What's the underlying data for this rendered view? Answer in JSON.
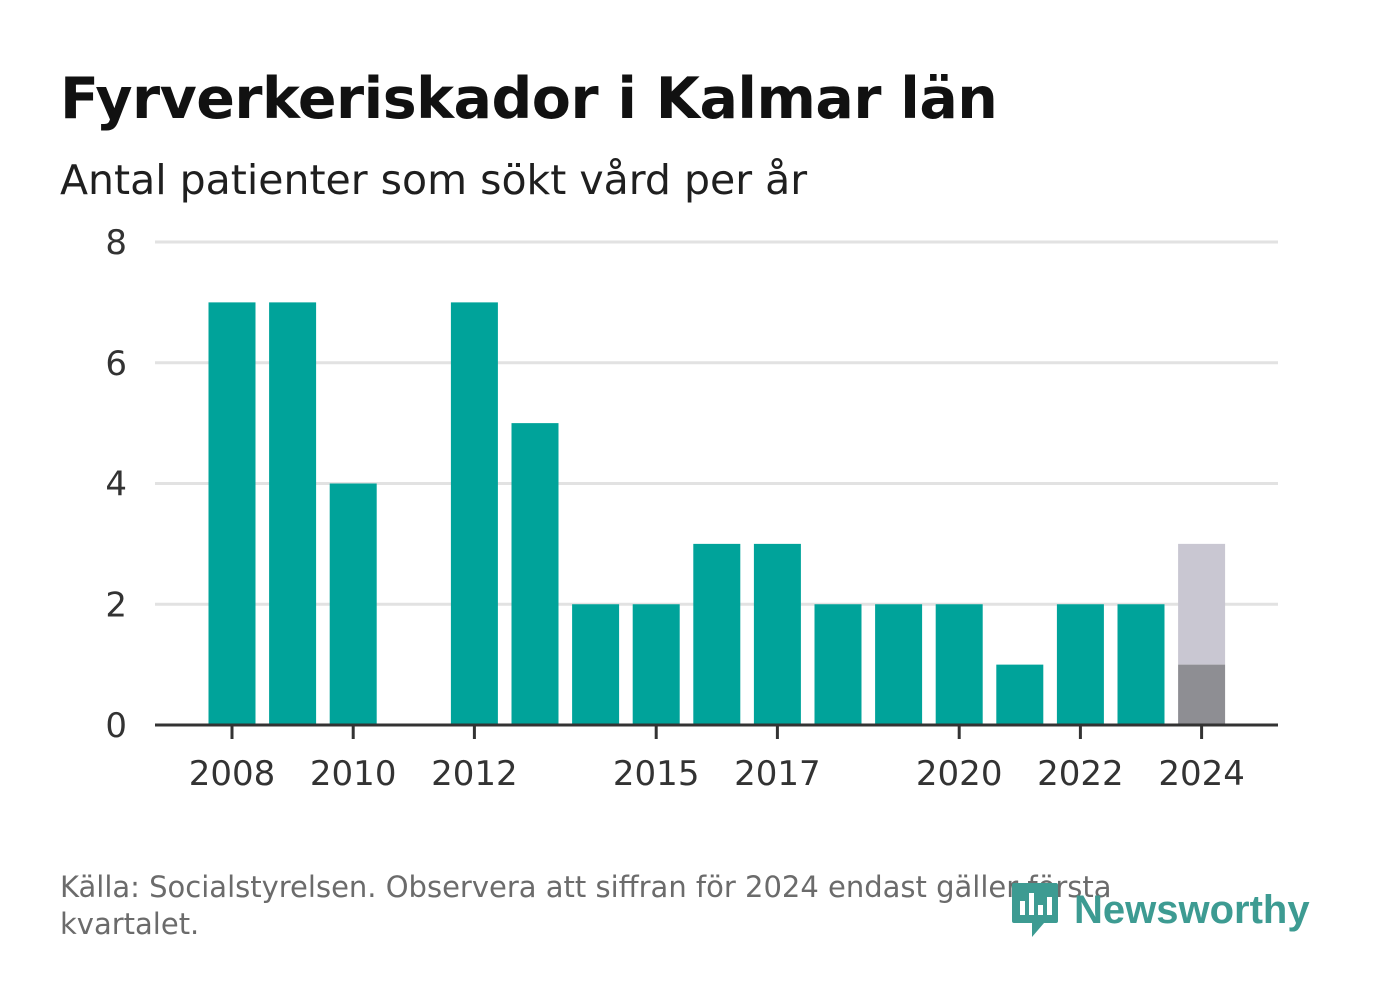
{
  "header": {
    "title": "Fyrverkeriskador i Kalmar län",
    "subtitle": "Antal patienter som sökt vård per år"
  },
  "footer": {
    "source": "Källa: Socialstyrelsen. Observera att siffran för 2024 endast gäller första kvartalet.",
    "brand": "Newsworthy"
  },
  "colors": {
    "bar": "#00a39a",
    "partial_actual": "#8e8e93",
    "partial_remaining": "#c9c7d2",
    "grid": "#e2e2e2",
    "axis": "#333333"
  },
  "chart_data": {
    "type": "bar",
    "title": "Fyrverkeriskador i Kalmar län",
    "subtitle": "Antal patienter som sökt vård per år",
    "x": [
      2008,
      2009,
      2010,
      2011,
      2012,
      2013,
      2014,
      2015,
      2016,
      2017,
      2018,
      2019,
      2020,
      2021,
      2022,
      2023,
      2024
    ],
    "values": [
      7,
      7,
      4,
      0,
      7,
      5,
      2,
      2,
      3,
      3,
      2,
      2,
      2,
      1,
      2,
      2,
      1
    ],
    "partial": {
      "x": 2024,
      "actual": 1,
      "full_bar_value": 3
    },
    "xticks": [
      2008,
      2010,
      2012,
      2015,
      2017,
      2020,
      2022,
      2024
    ],
    "yticks": [
      0,
      2,
      4,
      6,
      8
    ],
    "ylim": [
      0,
      8
    ],
    "grid": true,
    "legend": "none"
  }
}
